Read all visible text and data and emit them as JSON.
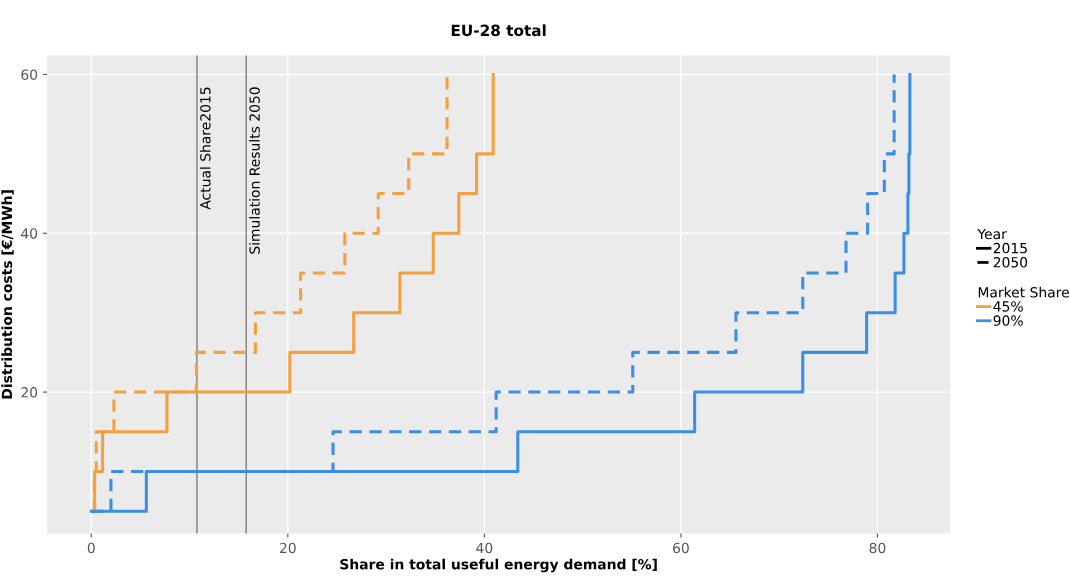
{
  "chart_data": {
    "type": "step",
    "title": "EU-28 total",
    "xlabel": "Share in total useful energy demand [%]",
    "ylabel": "Distribution costs [€/MWh]",
    "xlim": [
      -4.5,
      87.4
    ],
    "ylim": [
      2.2,
      62.4
    ],
    "xticks": [
      0,
      20,
      40,
      60,
      80
    ],
    "yticks": [
      20,
      40,
      60
    ],
    "grid": true,
    "legend": "right",
    "legend_title": [
      "Year",
      "Market Share"
    ],
    "series": [
      {
        "name": "2015",
        "color": "#000000",
        "line_style": "solid"
      },
      {
        "name": "2050",
        "color": "#000000",
        "line_style": "dashed"
      },
      {
        "name": "45%",
        "color": "#f5a040",
        "line_style": "solid"
      },
      {
        "name": "90%",
        "color": "#3a8ee6",
        "line_style": "solid"
      },
      {
        "color": "#f5a040",
        "line_style": "solid",
        "x": [
          0.3,
          0.34,
          1.15,
          7.7,
          20.2,
          26.7,
          31.4,
          34.8,
          37.4,
          39.2,
          40.9
        ],
        "values": [
          5,
          10,
          15,
          20,
          25,
          30,
          35,
          40,
          45,
          50,
          60
        ]
      },
      {
        "color": "#f5a040",
        "line_style": "dashed",
        "x": [
          0.3,
          0.3,
          0.5,
          2.3,
          10.7,
          16.7,
          21.3,
          25.8,
          29.2,
          32.3,
          36.2
        ],
        "values": [
          5,
          10,
          15,
          20,
          25,
          30,
          35,
          40,
          45,
          50,
          60
        ]
      },
      {
        "color": "#3a8ee6",
        "line_style": "solid",
        "x": [
          0,
          5.6,
          43.4,
          61.4,
          72.4,
          78.9,
          81.8,
          82.7,
          83.1,
          83.2,
          83.3
        ],
        "values": [
          5,
          10,
          15,
          20,
          25,
          30,
          35,
          40,
          45,
          50,
          60
        ]
      },
      {
        "color": "#3a8ee6",
        "line_style": "dashed",
        "x": [
          0,
          2.0,
          24.6,
          41.2,
          55.1,
          65.6,
          72.4,
          76.8,
          79.0,
          80.7,
          81.7
        ],
        "values": [
          5,
          10,
          15,
          20,
          25,
          30,
          35,
          40,
          45,
          50,
          60
        ]
      }
    ],
    "ref_lines": [
      {
        "axis": "x",
        "value": 10.75,
        "label": "Actual Share2015",
        "color": "#707070"
      },
      {
        "axis": "x",
        "value": 15.76,
        "label": "Simulation Results 2050",
        "color": "#707070"
      }
    ]
  }
}
